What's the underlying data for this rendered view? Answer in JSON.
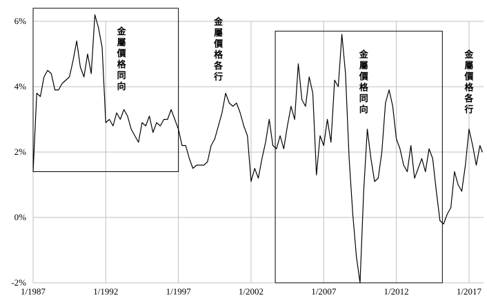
{
  "chart_data": {
    "type": "line",
    "title": "",
    "xlabel": "",
    "ylabel": "",
    "ylim": [
      -2,
      6
    ],
    "y_ticks": [
      {
        "value": 6,
        "label": "6%"
      },
      {
        "value": 4,
        "label": "4%"
      },
      {
        "value": 2,
        "label": "2%"
      },
      {
        "value": 0,
        "label": "0%"
      },
      {
        "value": -2,
        "label": "-2%"
      }
    ],
    "xlim": [
      "1987-01",
      "2018-01"
    ],
    "x_ticks": [
      {
        "date": "1987-01",
        "label": "1/1987"
      },
      {
        "date": "1992-01",
        "label": "1/1992"
      },
      {
        "date": "1997-01",
        "label": "1/1997"
      },
      {
        "date": "2002-01",
        "label": "1/2002"
      },
      {
        "date": "2007-01",
        "label": "1/2007"
      },
      {
        "date": "2012-01",
        "label": "1/2012"
      },
      {
        "date": "2017-01",
        "label": "1/2017"
      }
    ],
    "grid": true,
    "line_color": "#000000",
    "series": [
      {
        "points": [
          [
            "1987-01",
            1.4
          ],
          [
            "1987-04",
            3.8
          ],
          [
            "1987-07",
            3.7
          ],
          [
            "1987-10",
            4.3
          ],
          [
            "1988-01",
            4.5
          ],
          [
            "1988-04",
            4.4
          ],
          [
            "1988-07",
            3.9
          ],
          [
            "1988-10",
            3.9
          ],
          [
            "1989-01",
            4.1
          ],
          [
            "1989-04",
            4.2
          ],
          [
            "1989-07",
            4.3
          ],
          [
            "1989-10",
            4.8
          ],
          [
            "1990-01",
            5.4
          ],
          [
            "1990-04",
            4.6
          ],
          [
            "1990-07",
            4.3
          ],
          [
            "1990-10",
            5.0
          ],
          [
            "1991-01",
            4.4
          ],
          [
            "1991-04",
            6.2
          ],
          [
            "1991-07",
            5.8
          ],
          [
            "1991-10",
            5.2
          ],
          [
            "1992-01",
            2.9
          ],
          [
            "1992-04",
            3.0
          ],
          [
            "1992-07",
            2.8
          ],
          [
            "1992-10",
            3.2
          ],
          [
            "1993-01",
            3.0
          ],
          [
            "1993-04",
            3.3
          ],
          [
            "1993-07",
            3.1
          ],
          [
            "1993-10",
            2.7
          ],
          [
            "1994-01",
            2.5
          ],
          [
            "1994-04",
            2.3
          ],
          [
            "1994-07",
            2.9
          ],
          [
            "1994-10",
            2.8
          ],
          [
            "1995-01",
            3.1
          ],
          [
            "1995-04",
            2.6
          ],
          [
            "1995-07",
            2.9
          ],
          [
            "1995-10",
            2.8
          ],
          [
            "1996-01",
            3.0
          ],
          [
            "1996-04",
            3.0
          ],
          [
            "1996-07",
            3.3
          ],
          [
            "1996-10",
            3.0
          ],
          [
            "1997-01",
            2.7
          ],
          [
            "1997-04",
            2.2
          ],
          [
            "1997-07",
            2.2
          ],
          [
            "1997-10",
            1.8
          ],
          [
            "1998-01",
            1.5
          ],
          [
            "1998-04",
            1.6
          ],
          [
            "1998-07",
            1.6
          ],
          [
            "1998-10",
            1.6
          ],
          [
            "1999-01",
            1.7
          ],
          [
            "1999-04",
            2.2
          ],
          [
            "1999-07",
            2.4
          ],
          [
            "1999-10",
            2.8
          ],
          [
            "2000-01",
            3.2
          ],
          [
            "2000-04",
            3.8
          ],
          [
            "2000-07",
            3.5
          ],
          [
            "2000-10",
            3.4
          ],
          [
            "2001-01",
            3.5
          ],
          [
            "2001-04",
            3.2
          ],
          [
            "2001-07",
            2.8
          ],
          [
            "2001-10",
            2.5
          ],
          [
            "2002-01",
            1.1
          ],
          [
            "2002-04",
            1.5
          ],
          [
            "2002-07",
            1.2
          ],
          [
            "2002-10",
            1.8
          ],
          [
            "2003-01",
            2.3
          ],
          [
            "2003-04",
            3.0
          ],
          [
            "2003-07",
            2.2
          ],
          [
            "2003-10",
            2.1
          ],
          [
            "2004-01",
            2.5
          ],
          [
            "2004-04",
            2.1
          ],
          [
            "2004-07",
            2.8
          ],
          [
            "2004-10",
            3.4
          ],
          [
            "2005-01",
            3.0
          ],
          [
            "2005-04",
            4.7
          ],
          [
            "2005-07",
            3.6
          ],
          [
            "2005-10",
            3.4
          ],
          [
            "2006-01",
            4.3
          ],
          [
            "2006-04",
            3.8
          ],
          [
            "2006-07",
            1.3
          ],
          [
            "2006-10",
            2.5
          ],
          [
            "2007-01",
            2.2
          ],
          [
            "2007-04",
            3.0
          ],
          [
            "2007-07",
            2.3
          ],
          [
            "2007-10",
            4.2
          ],
          [
            "2008-01",
            4.0
          ],
          [
            "2008-04",
            5.6
          ],
          [
            "2008-07",
            4.4
          ],
          [
            "2008-10",
            1.8
          ],
          [
            "2009-01",
            0.1
          ],
          [
            "2009-04",
            -1.2
          ],
          [
            "2009-07",
            -2.0
          ],
          [
            "2009-10",
            0.8
          ],
          [
            "2010-01",
            2.7
          ],
          [
            "2010-04",
            1.8
          ],
          [
            "2010-07",
            1.1
          ],
          [
            "2010-10",
            1.2
          ],
          [
            "2011-01",
            2.0
          ],
          [
            "2011-04",
            3.5
          ],
          [
            "2011-07",
            3.9
          ],
          [
            "2011-10",
            3.4
          ],
          [
            "2012-01",
            2.4
          ],
          [
            "2012-04",
            2.1
          ],
          [
            "2012-07",
            1.6
          ],
          [
            "2012-10",
            1.4
          ],
          [
            "2013-01",
            2.2
          ],
          [
            "2013-04",
            1.2
          ],
          [
            "2013-07",
            1.5
          ],
          [
            "2013-10",
            1.8
          ],
          [
            "2014-01",
            1.4
          ],
          [
            "2014-04",
            2.1
          ],
          [
            "2014-07",
            1.8
          ],
          [
            "2014-10",
            0.8
          ],
          [
            "2015-01",
            -0.1
          ],
          [
            "2015-04",
            -0.2
          ],
          [
            "2015-07",
            0.1
          ],
          [
            "2015-10",
            0.3
          ],
          [
            "2016-01",
            1.4
          ],
          [
            "2016-04",
            1.0
          ],
          [
            "2016-07",
            0.8
          ],
          [
            "2016-10",
            1.6
          ],
          [
            "2017-01",
            2.7
          ],
          [
            "2017-04",
            2.2
          ],
          [
            "2017-07",
            1.6
          ],
          [
            "2017-10",
            2.2
          ],
          [
            "2017-12",
            2.0
          ]
        ]
      }
    ],
    "annotations": [
      {
        "id": "box-1",
        "type": "box",
        "x_start": "1987-01",
        "x_end": "1997-01",
        "y_low": 1.4,
        "y_high": 6.4
      },
      {
        "id": "box-2",
        "type": "box",
        "x_start": "2003-09",
        "x_end": "2015-03",
        "y_low": -2.0,
        "y_high": 5.7
      },
      {
        "id": "label-1",
        "type": "text",
        "text": "金屬價格同向",
        "x": "1993-02",
        "y": 5.6
      },
      {
        "id": "label-2",
        "type": "text",
        "text": "金屬價格各行",
        "x": "1999-10",
        "y": 5.9
      },
      {
        "id": "label-3",
        "type": "text",
        "text": "金屬價格同向",
        "x": "2009-10",
        "y": 4.9
      },
      {
        "id": "label-4",
        "type": "text",
        "text": "金屬價格各行",
        "x": "2017-01",
        "y": 4.9
      }
    ]
  }
}
